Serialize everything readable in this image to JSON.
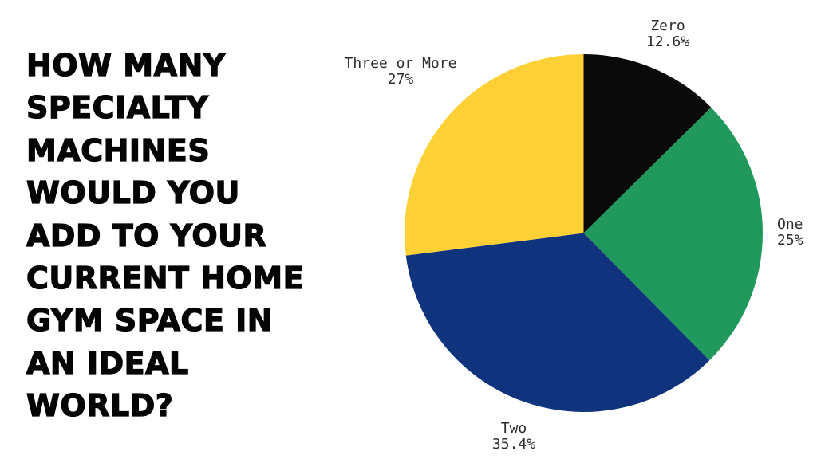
{
  "page": {
    "background": "#ffffff"
  },
  "title": {
    "full": "HOW MANY SPECIALTY MACHINES WOULD YOU ADD TO YOUR CURRENT HOME GYM SPACE IN AN IDEAL WORLD?",
    "lines": [
      "HOW MANY",
      "SPECIALTY",
      "MACHINES",
      "WOULD YOU",
      "ADD TO YOUR",
      "CURRENT HOME",
      "GYM SPACE IN",
      "AN IDEAL",
      "WORLD?"
    ]
  },
  "chart_data": {
    "type": "pie",
    "title": "HOW MANY SPECIALTY MACHINES WOULD YOU ADD TO YOUR CURRENT HOME GYM SPACE IN AN IDEAL WORLD?",
    "labels": [
      "Zero",
      "One",
      "Two",
      "Three or More"
    ],
    "values": [
      12.6,
      25,
      35.4,
      27
    ],
    "pct_labels": [
      "12.6%",
      "25%",
      "35.4%",
      "27%"
    ],
    "colors": [
      "#0a0a0a",
      "#22995c",
      "#10337e",
      "#fdd035"
    ],
    "start_angle": "12-oclock",
    "direction": "clockwise",
    "label_position": "outside",
    "label_text_color": "#2d2d2d",
    "legend": "none"
  }
}
